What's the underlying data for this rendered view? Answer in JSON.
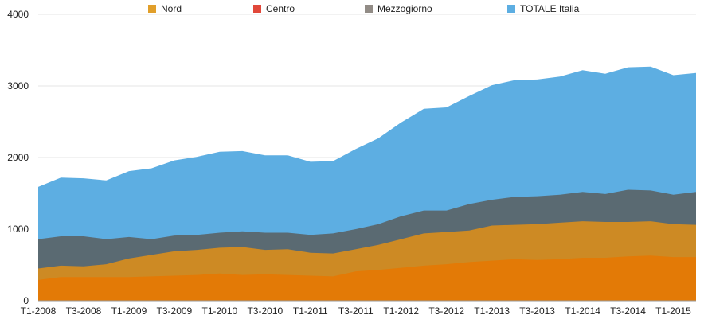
{
  "chart_data": {
    "type": "area",
    "stacked": false,
    "title": "",
    "xlabel": "",
    "ylabel": "",
    "ylim": [
      0,
      4000
    ],
    "yticks": [
      0,
      1000,
      2000,
      3000,
      4000
    ],
    "grid": true,
    "legend_position": "top",
    "categories": [
      "T1-2008",
      "T2-2008",
      "T3-2008",
      "T4-2008",
      "T1-2009",
      "T2-2009",
      "T3-2009",
      "T4-2009",
      "T1-2010",
      "T2-2010",
      "T3-2010",
      "T4-2010",
      "T1-2011",
      "T2-2011",
      "T3-2011",
      "T4-2011",
      "T1-2012",
      "T2-2012",
      "T3-2012",
      "T4-2012",
      "T1-2013",
      "T2-2013",
      "T3-2013",
      "T4-2013",
      "T1-2014",
      "T2-2014",
      "T3-2014",
      "T4-2014",
      "T1-2015",
      "T2-2015"
    ],
    "x_tick_labels": [
      "T1-2008",
      "T3-2008",
      "T1-2009",
      "T3-2009",
      "T1-2010",
      "T3-2010",
      "T1-2011",
      "T3-2011",
      "T1-2012",
      "T3-2012",
      "T1-2013",
      "T3-2013",
      "T1-2014",
      "T3-2014",
      "T1-2015"
    ],
    "series": [
      {
        "name": "TOTALE Italia",
        "color": "#5daee2",
        "values": [
          1590,
          1720,
          1710,
          1680,
          1810,
          1850,
          1960,
          2010,
          2080,
          2090,
          2030,
          2030,
          1940,
          1950,
          2120,
          2270,
          2490,
          2680,
          2700,
          2860,
          3010,
          3080,
          3090,
          3130,
          3220,
          3170,
          3260,
          3270,
          3150,
          3180
        ]
      },
      {
        "name": "Mezzogiorno",
        "color": "#5a6a72",
        "values": [
          860,
          900,
          900,
          860,
          890,
          860,
          910,
          920,
          950,
          970,
          950,
          950,
          920,
          940,
          1000,
          1070,
          1180,
          1260,
          1260,
          1350,
          1410,
          1450,
          1460,
          1480,
          1520,
          1490,
          1550,
          1540,
          1480,
          1520
        ]
      },
      {
        "name": "Nord",
        "color": "#cd8a24",
        "values": [
          450,
          490,
          480,
          510,
          590,
          640,
          690,
          710,
          740,
          750,
          710,
          720,
          670,
          660,
          720,
          780,
          860,
          940,
          960,
          980,
          1050,
          1060,
          1070,
          1090,
          1110,
          1100,
          1100,
          1110,
          1070,
          1060
        ]
      },
      {
        "name": "Centro",
        "color": "#e37a06",
        "values": [
          290,
          330,
          330,
          330,
          330,
          340,
          350,
          360,
          380,
          360,
          370,
          360,
          350,
          340,
          410,
          430,
          460,
          490,
          510,
          540,
          560,
          580,
          570,
          580,
          600,
          600,
          620,
          630,
          610,
          610
        ]
      }
    ],
    "legend_items": [
      {
        "name": "Nord",
        "color": "#e19f2a"
      },
      {
        "name": "Centro",
        "color": "#e1483a"
      },
      {
        "name": "Mezzogiorno",
        "color": "#928c86"
      },
      {
        "name": "TOTALE Italia",
        "color": "#5daee2"
      }
    ]
  }
}
